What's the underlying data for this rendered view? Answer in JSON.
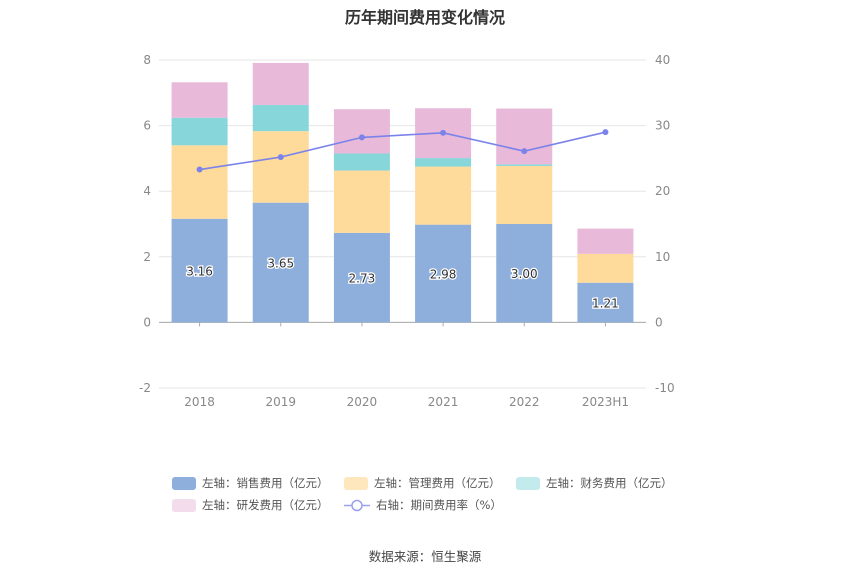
{
  "chart_data": {
    "type": "bar",
    "stacked": true,
    "title": "历年期间费用变化情况",
    "categories": [
      "2018",
      "2019",
      "2020",
      "2021",
      "2022",
      "2023H1"
    ],
    "left_axis": {
      "min": -2,
      "max": 8,
      "ticks": [
        "-2",
        "0",
        "2",
        "4",
        "6",
        "8"
      ]
    },
    "right_axis": {
      "min": -10,
      "max": 40,
      "ticks": [
        "-10",
        "0",
        "10",
        "20",
        "30",
        "40"
      ]
    },
    "series": [
      {
        "name": "左轴：销售费用（亿元）",
        "axis": "left",
        "type": "bar",
        "color": "#8eaedb",
        "values": [
          3.16,
          3.65,
          2.73,
          2.98,
          3.0,
          1.21
        ],
        "labels": [
          "3.16",
          "3.65",
          "2.73",
          "2.98",
          "3.00",
          "1.21"
        ]
      },
      {
        "name": "左轴：管理费用（亿元）",
        "axis": "left",
        "type": "bar",
        "color": "#fedb9b",
        "values": [
          2.24,
          2.18,
          1.9,
          1.77,
          1.77,
          0.88
        ]
      },
      {
        "name": "左轴：财务费用（亿元）",
        "axis": "left",
        "type": "bar",
        "color": "#87d6da",
        "values": [
          0.84,
          0.8,
          0.52,
          0.26,
          0.05,
          0.0
        ]
      },
      {
        "name": "左轴：研发费用（亿元）",
        "axis": "left",
        "type": "bar",
        "color": "#e8b9d9",
        "values": [
          1.08,
          1.28,
          1.35,
          1.52,
          1.7,
          0.77
        ]
      },
      {
        "name": "右轴：期间费用率（%）",
        "axis": "right",
        "type": "line",
        "color": "#7b83ea",
        "values": [
          23.3,
          25.2,
          28.2,
          28.9,
          26.1,
          29.0
        ]
      }
    ]
  },
  "legend": {
    "items": [
      {
        "label": "左轴：销售费用（亿元）",
        "color": "#8eaedb"
      },
      {
        "label": "左轴：管理费用（亿元）",
        "color": "#fee6bd"
      },
      {
        "label": "左轴：财务费用（亿元）",
        "color": "#c3eaec"
      },
      {
        "label": "左轴：研发费用（亿元）",
        "color": "#f3dcec"
      },
      {
        "label": "右轴：期间费用率（%）",
        "color": "#9aa1f0"
      }
    ]
  },
  "footer": {
    "source": "数据来源：恒生聚源"
  }
}
